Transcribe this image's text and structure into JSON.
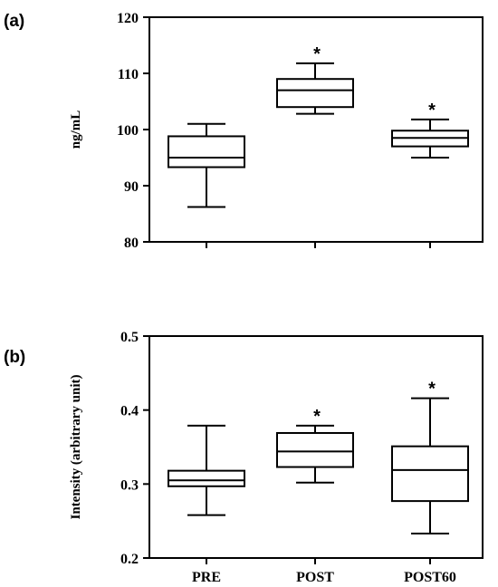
{
  "chart_data": [
    {
      "type": "box",
      "panel_label": "(a)",
      "title": "",
      "xlabel": "",
      "ylabel": "ng/mL",
      "ylim": [
        80,
        120
      ],
      "yticks": [
        "80",
        "90",
        "100",
        "110",
        "120"
      ],
      "categories": [
        "PRE",
        "POST",
        "POST60"
      ],
      "show_category_labels": false,
      "boxes": [
        {
          "min": 86.2,
          "q1": 93.3,
          "median": 95.0,
          "q3": 98.8,
          "max": 101.0,
          "marker": ""
        },
        {
          "min": 102.8,
          "q1": 104.0,
          "median": 107.0,
          "q3": 109.0,
          "max": 111.8,
          "marker": "*"
        },
        {
          "min": 95.0,
          "q1": 97.0,
          "median": 98.5,
          "q3": 99.8,
          "max": 101.8,
          "marker": "*"
        }
      ],
      "grid": false
    },
    {
      "type": "box",
      "panel_label": "(b)",
      "title": "",
      "xlabel": "",
      "ylabel": "Intensity (arbitrary unit)",
      "ylim": [
        0.2,
        0.5
      ],
      "yticks": [
        "0.2",
        "0.3",
        "0.4",
        "0.5"
      ],
      "categories": [
        "PRE",
        "POST",
        "POST60"
      ],
      "show_category_labels": true,
      "boxes": [
        {
          "min": 0.258,
          "q1": 0.297,
          "median": 0.305,
          "q3": 0.318,
          "max": 0.379,
          "marker": ""
        },
        {
          "min": 0.302,
          "q1": 0.323,
          "median": 0.344,
          "q3": 0.369,
          "max": 0.379,
          "marker": "*"
        },
        {
          "min": 0.233,
          "q1": 0.277,
          "median": 0.319,
          "q3": 0.351,
          "max": 0.416,
          "marker": "*"
        }
      ],
      "grid": false
    }
  ]
}
